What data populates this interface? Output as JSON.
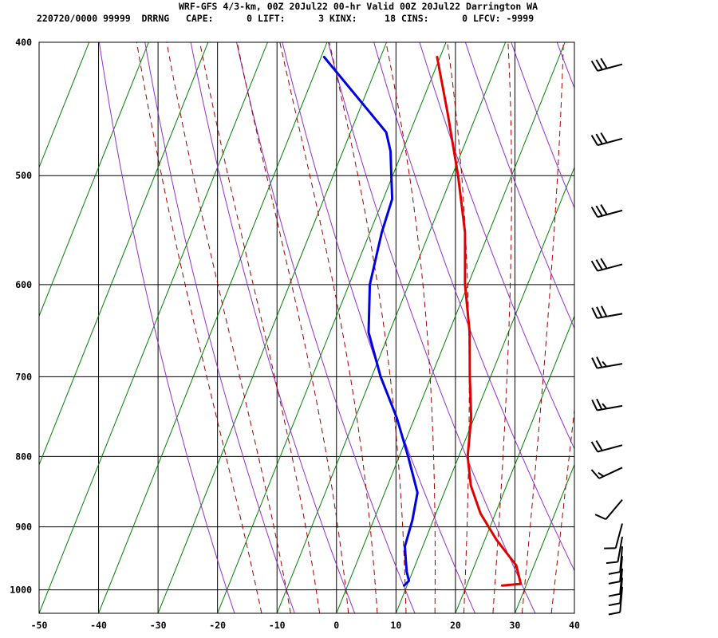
{
  "header": {
    "line1": "WRF-GFS 4/3-km, 00Z 20Jul22 00-hr Valid 00Z 20Jul22 Darrington WA",
    "line2": "220720/0000 99999  DRRNG   CAPE:      0 LIFT:      3 KINX:     18 CINS:      0 LFCV: -9999"
  },
  "chart_data": {
    "type": "skew-t",
    "x_axis": {
      "unit": "degC",
      "range": [
        -50,
        40
      ],
      "ticks": [
        -50,
        -40,
        -30,
        -20,
        -10,
        0,
        10,
        20,
        30,
        40
      ]
    },
    "y_axis": {
      "unit": "hPa",
      "log_scale": true,
      "range": [
        1040,
        400
      ],
      "ticks": [
        400,
        500,
        600,
        700,
        800,
        900,
        1000
      ]
    },
    "grid": true,
    "series": [
      {
        "role": "temperature",
        "color": "#e00000",
        "points": [
          {
            "p": 993,
            "t": 26
          },
          {
            "p": 990,
            "t": 29
          },
          {
            "p": 960,
            "t": 27
          },
          {
            "p": 920,
            "t": 22
          },
          {
            "p": 880,
            "t": 17.5
          },
          {
            "p": 840,
            "t": 14
          },
          {
            "p": 800,
            "t": 11.5
          },
          {
            "p": 750,
            "t": 9.5
          },
          {
            "p": 700,
            "t": 6.5
          },
          {
            "p": 650,
            "t": 3.5
          },
          {
            "p": 600,
            "t": -0.5
          },
          {
            "p": 550,
            "t": -4
          },
          {
            "p": 500,
            "t": -9
          },
          {
            "p": 450,
            "t": -15
          },
          {
            "p": 410,
            "t": -20.5
          }
        ]
      },
      {
        "role": "dewpoint",
        "color": "#0000e0",
        "points": [
          {
            "p": 993,
            "t": 9.5
          },
          {
            "p": 985,
            "t": 10
          },
          {
            "p": 970,
            "t": 9
          },
          {
            "p": 950,
            "t": 8
          },
          {
            "p": 930,
            "t": 7
          },
          {
            "p": 890,
            "t": 6.5
          },
          {
            "p": 850,
            "t": 5.5
          },
          {
            "p": 800,
            "t": 1.5
          },
          {
            "p": 750,
            "t": -3
          },
          {
            "p": 700,
            "t": -8.5
          },
          {
            "p": 650,
            "t": -13.5
          },
          {
            "p": 600,
            "t": -16.5
          },
          {
            "p": 550,
            "t": -18
          },
          {
            "p": 520,
            "t": -18.5
          },
          {
            "p": 480,
            "t": -22
          },
          {
            "p": 465,
            "t": -24
          },
          {
            "p": 410,
            "t": -39.5
          }
        ]
      }
    ],
    "isotherms_degC": [
      -150,
      -140,
      -130,
      -120,
      -110,
      -100,
      -90,
      -80,
      -70,
      -60,
      -50,
      -40,
      -30,
      -20,
      -10,
      0,
      10,
      20,
      30,
      40
    ],
    "dry_adiabats_degC": [
      -20,
      -10,
      0,
      10,
      20,
      30,
      40,
      50,
      60,
      70,
      80,
      90,
      100,
      110,
      120,
      130,
      140,
      150,
      160
    ],
    "moist_adiabats_degC": [
      -15,
      -10,
      -5,
      0,
      5,
      10,
      15,
      20,
      25,
      30,
      35
    ],
    "mixing_ratios_gkg": [
      0.4,
      1,
      2,
      3,
      5,
      8,
      12,
      16,
      20,
      30
    ],
    "wind_barbs": [
      {
        "p": 415,
        "dir": 255,
        "spd": 30
      },
      {
        "p": 470,
        "dir": 255,
        "spd": 30
      },
      {
        "p": 530,
        "dir": 255,
        "spd": 30
      },
      {
        "p": 580,
        "dir": 255,
        "spd": 30
      },
      {
        "p": 630,
        "dir": 260,
        "spd": 30
      },
      {
        "p": 685,
        "dir": 260,
        "spd": 25
      },
      {
        "p": 735,
        "dir": 260,
        "spd": 25
      },
      {
        "p": 785,
        "dir": 255,
        "spd": 20
      },
      {
        "p": 815,
        "dir": 245,
        "spd": 15
      },
      {
        "p": 860,
        "dir": 220,
        "spd": 10
      },
      {
        "p": 895,
        "dir": 195,
        "spd": 10
      },
      {
        "p": 915,
        "dir": 190,
        "spd": 10
      },
      {
        "p": 930,
        "dir": 185,
        "spd": 10
      },
      {
        "p": 945,
        "dir": 185,
        "spd": 10
      },
      {
        "p": 965,
        "dir": 185,
        "spd": 10
      },
      {
        "p": 980,
        "dir": 185,
        "spd": 10
      },
      {
        "p": 995,
        "dir": 185,
        "spd": 10
      }
    ]
  }
}
